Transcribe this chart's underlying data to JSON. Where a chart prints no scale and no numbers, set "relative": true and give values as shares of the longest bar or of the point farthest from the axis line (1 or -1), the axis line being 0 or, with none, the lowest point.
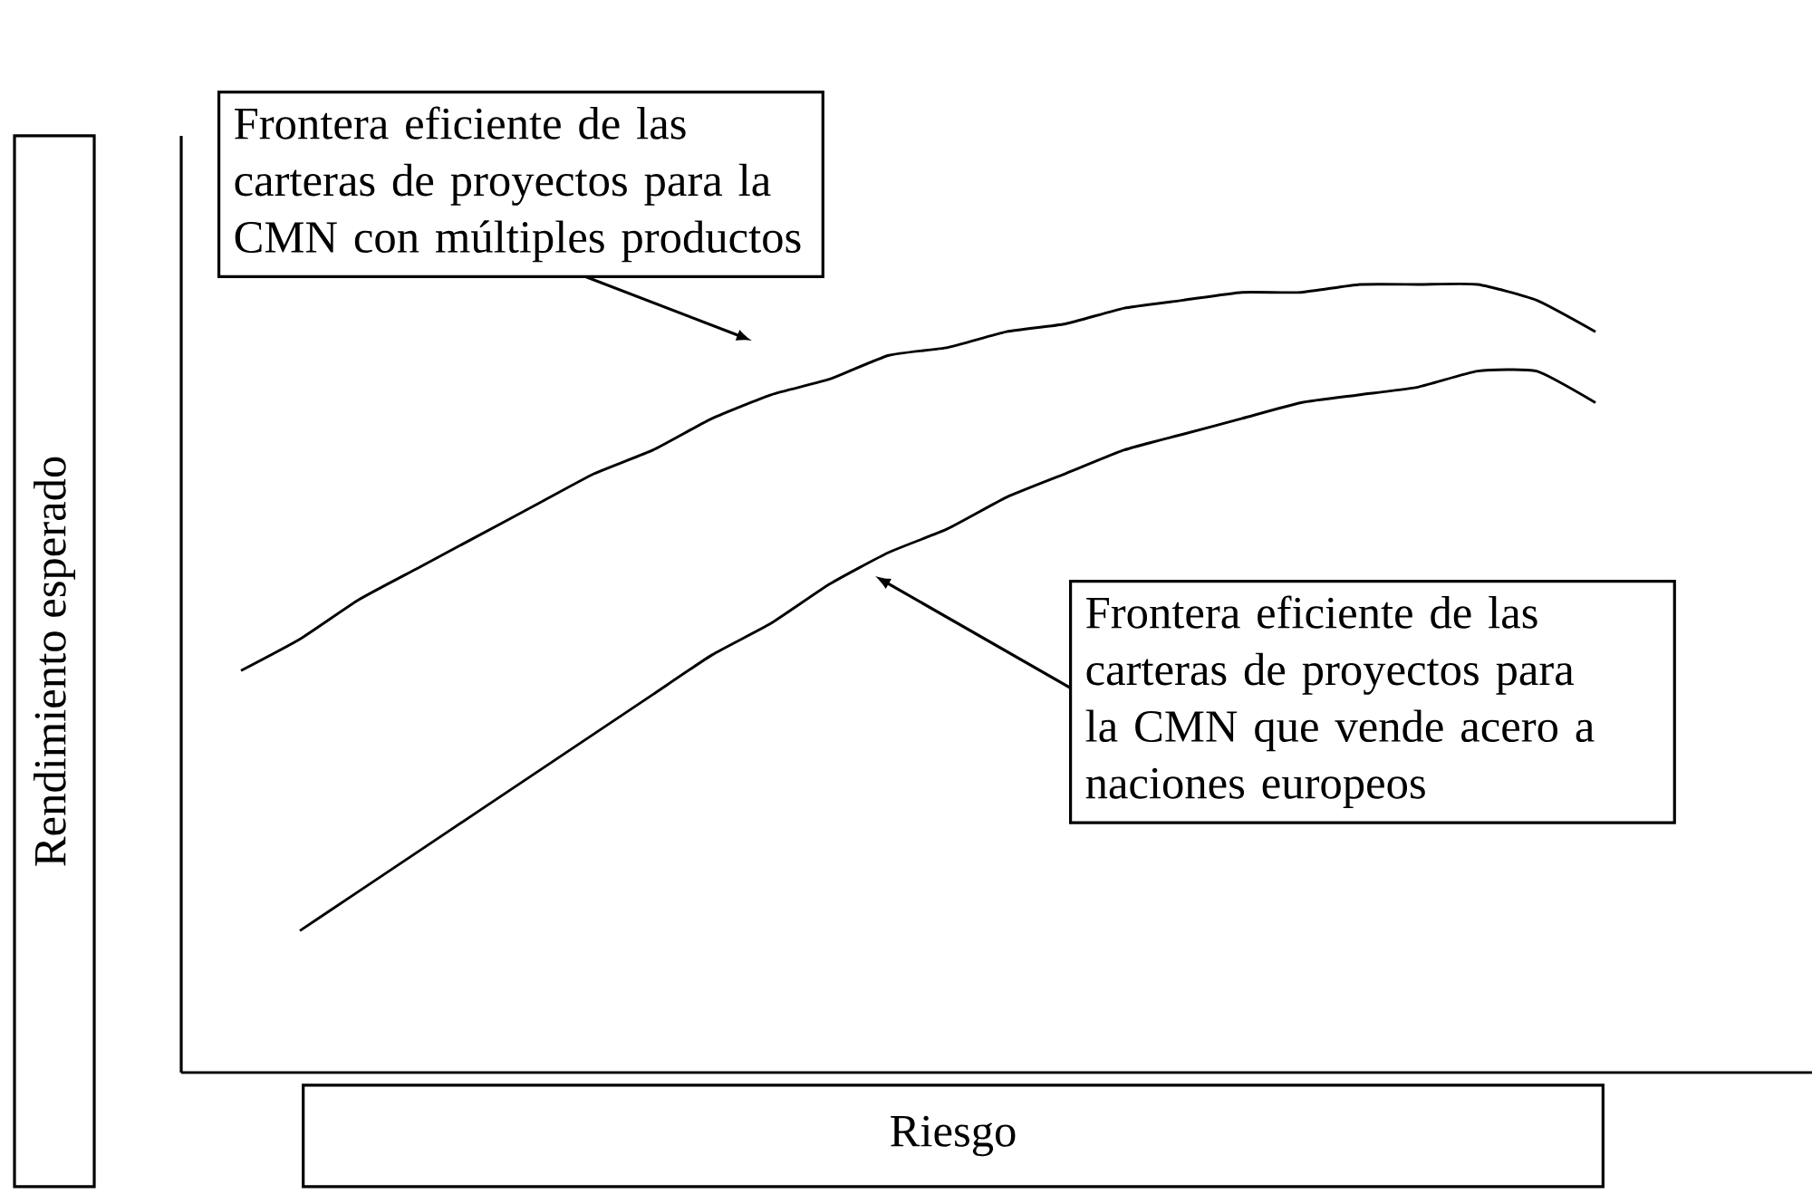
{
  "chart_data": {
    "type": "line",
    "relative": true,
    "xlabel": "Riesgo",
    "ylabel": "Rendimiento esperado",
    "categories": [
      null,
      null,
      null,
      null,
      null,
      null,
      null,
      null,
      null,
      null,
      null,
      null,
      null,
      null,
      null,
      null,
      null,
      null,
      null,
      null,
      null,
      null,
      null,
      null
    ],
    "series": [
      {
        "color": "#000000",
        "values": [
          0.51,
          0.55,
          0.6,
          0.64,
          0.68,
          0.72,
          0.76,
          0.79,
          0.83,
          0.86,
          0.88,
          0.91,
          0.92,
          0.94,
          0.95,
          0.97,
          0.98,
          0.99,
          0.99,
          1.0,
          1.0,
          1.0,
          0.98,
          0.94
        ]
      },
      {
        "color": "#000000",
        "values": [
          null,
          0.18,
          0.23,
          0.28,
          0.33,
          0.38,
          0.43,
          0.48,
          0.53,
          0.57,
          0.62,
          0.66,
          0.69,
          0.73,
          0.76,
          0.79,
          0.81,
          0.83,
          0.85,
          0.86,
          0.87,
          0.89,
          0.89,
          0.85
        ]
      }
    ],
    "annotations": [
      "Frontera eficiente de las carteras de proyectos para la CMN con múltiples productos",
      "Frontera eficiente de las carteras de proyectos para la CMN que vende acero a naciones europeos"
    ],
    "line_style": "solid",
    "marker": "none"
  }
}
